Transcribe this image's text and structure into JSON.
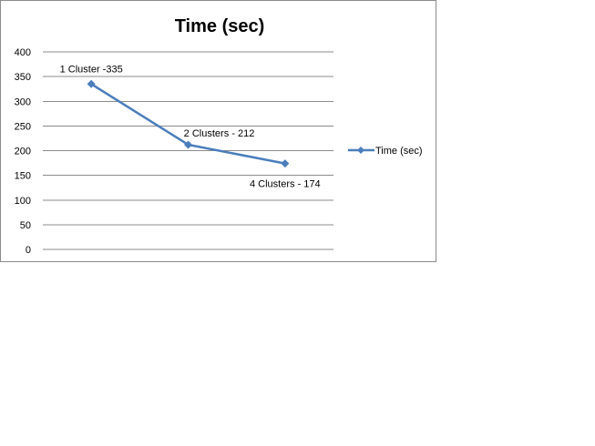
{
  "chart_data": {
    "type": "line",
    "title": "Time (sec)",
    "xlabel": "",
    "ylabel": "",
    "ylim": [
      0,
      400
    ],
    "yticks": [
      0,
      50,
      100,
      150,
      200,
      250,
      300,
      350,
      400
    ],
    "yticks_text": [
      "0",
      "50",
      "100",
      "150",
      "200",
      "250",
      "300",
      "350",
      "400"
    ],
    "categories": [
      "1 Cluster",
      "2 Clusters",
      "4 Clusters"
    ],
    "series": [
      {
        "name": "Time (sec)",
        "values": [
          335,
          212,
          174
        ],
        "color": "#4a7ebb",
        "marker": "diamond",
        "data_labels": [
          "1 Cluster -335",
          "2 Clusters - 212",
          "4 Clusters - 174"
        ]
      }
    ],
    "grid": true,
    "legend_position": "right"
  }
}
